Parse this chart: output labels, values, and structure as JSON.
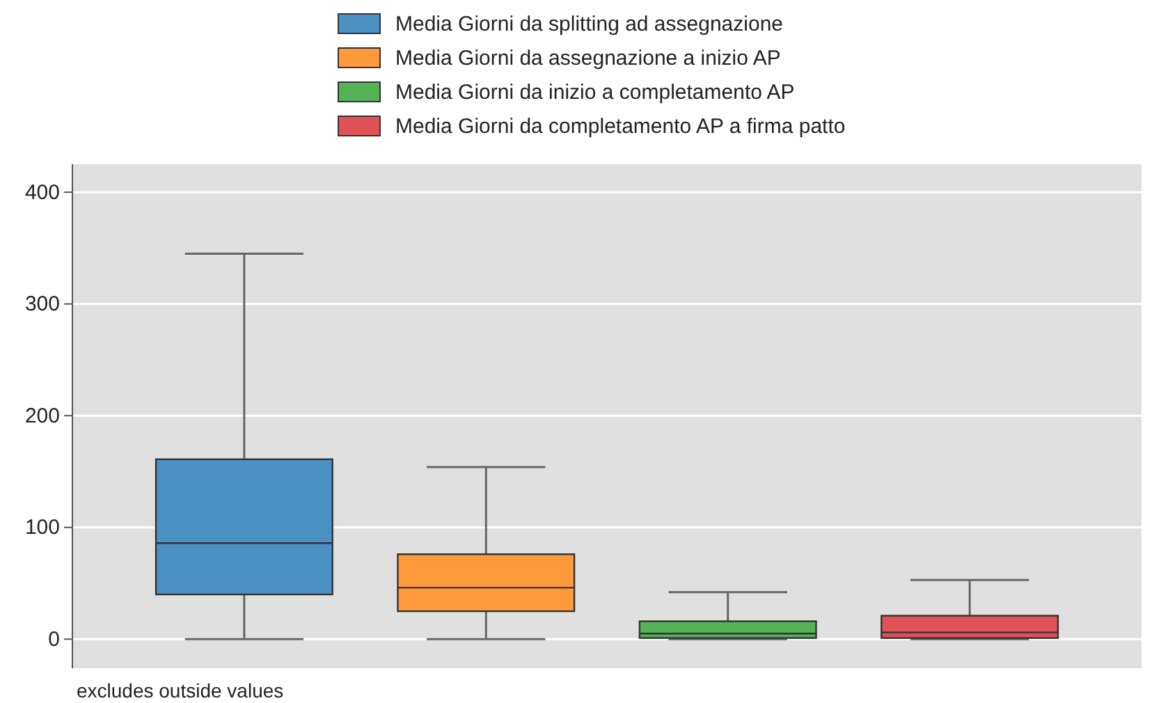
{
  "chart_data": {
    "type": "box",
    "categories": [
      null
    ],
    "series": [
      {
        "name": "Media Giorni da splitting ad assegnazione",
        "color": "#4b91c3",
        "boxes": [
          {
            "low": 0,
            "q1": 40,
            "median": 86,
            "q3": 161,
            "high": 345
          }
        ]
      },
      {
        "name": "Media Giorni da assegnazione a inizio AP",
        "color": "#fe9a3c",
        "boxes": [
          {
            "low": 0,
            "q1": 25,
            "median": 46,
            "q3": 76,
            "high": 154
          }
        ]
      },
      {
        "name": "Media Giorni da inizio a completamento AP",
        "color": "#54b356",
        "boxes": [
          {
            "low": 0,
            "q1": 1,
            "median": 5,
            "q3": 16,
            "high": 42
          }
        ]
      },
      {
        "name": "Media Giorni da completamento AP a firma patto",
        "color": "#e05255",
        "boxes": [
          {
            "low": 0,
            "q1": 1,
            "median": 6,
            "q3": 21,
            "high": 53
          }
        ]
      }
    ],
    "ylim": [
      -26,
      425
    ],
    "yticks": [
      0,
      100,
      200,
      300,
      400
    ],
    "grid": "y",
    "legend": "top",
    "tick_labels": "y",
    "annotations": [
      "excludes outside values"
    ]
  }
}
